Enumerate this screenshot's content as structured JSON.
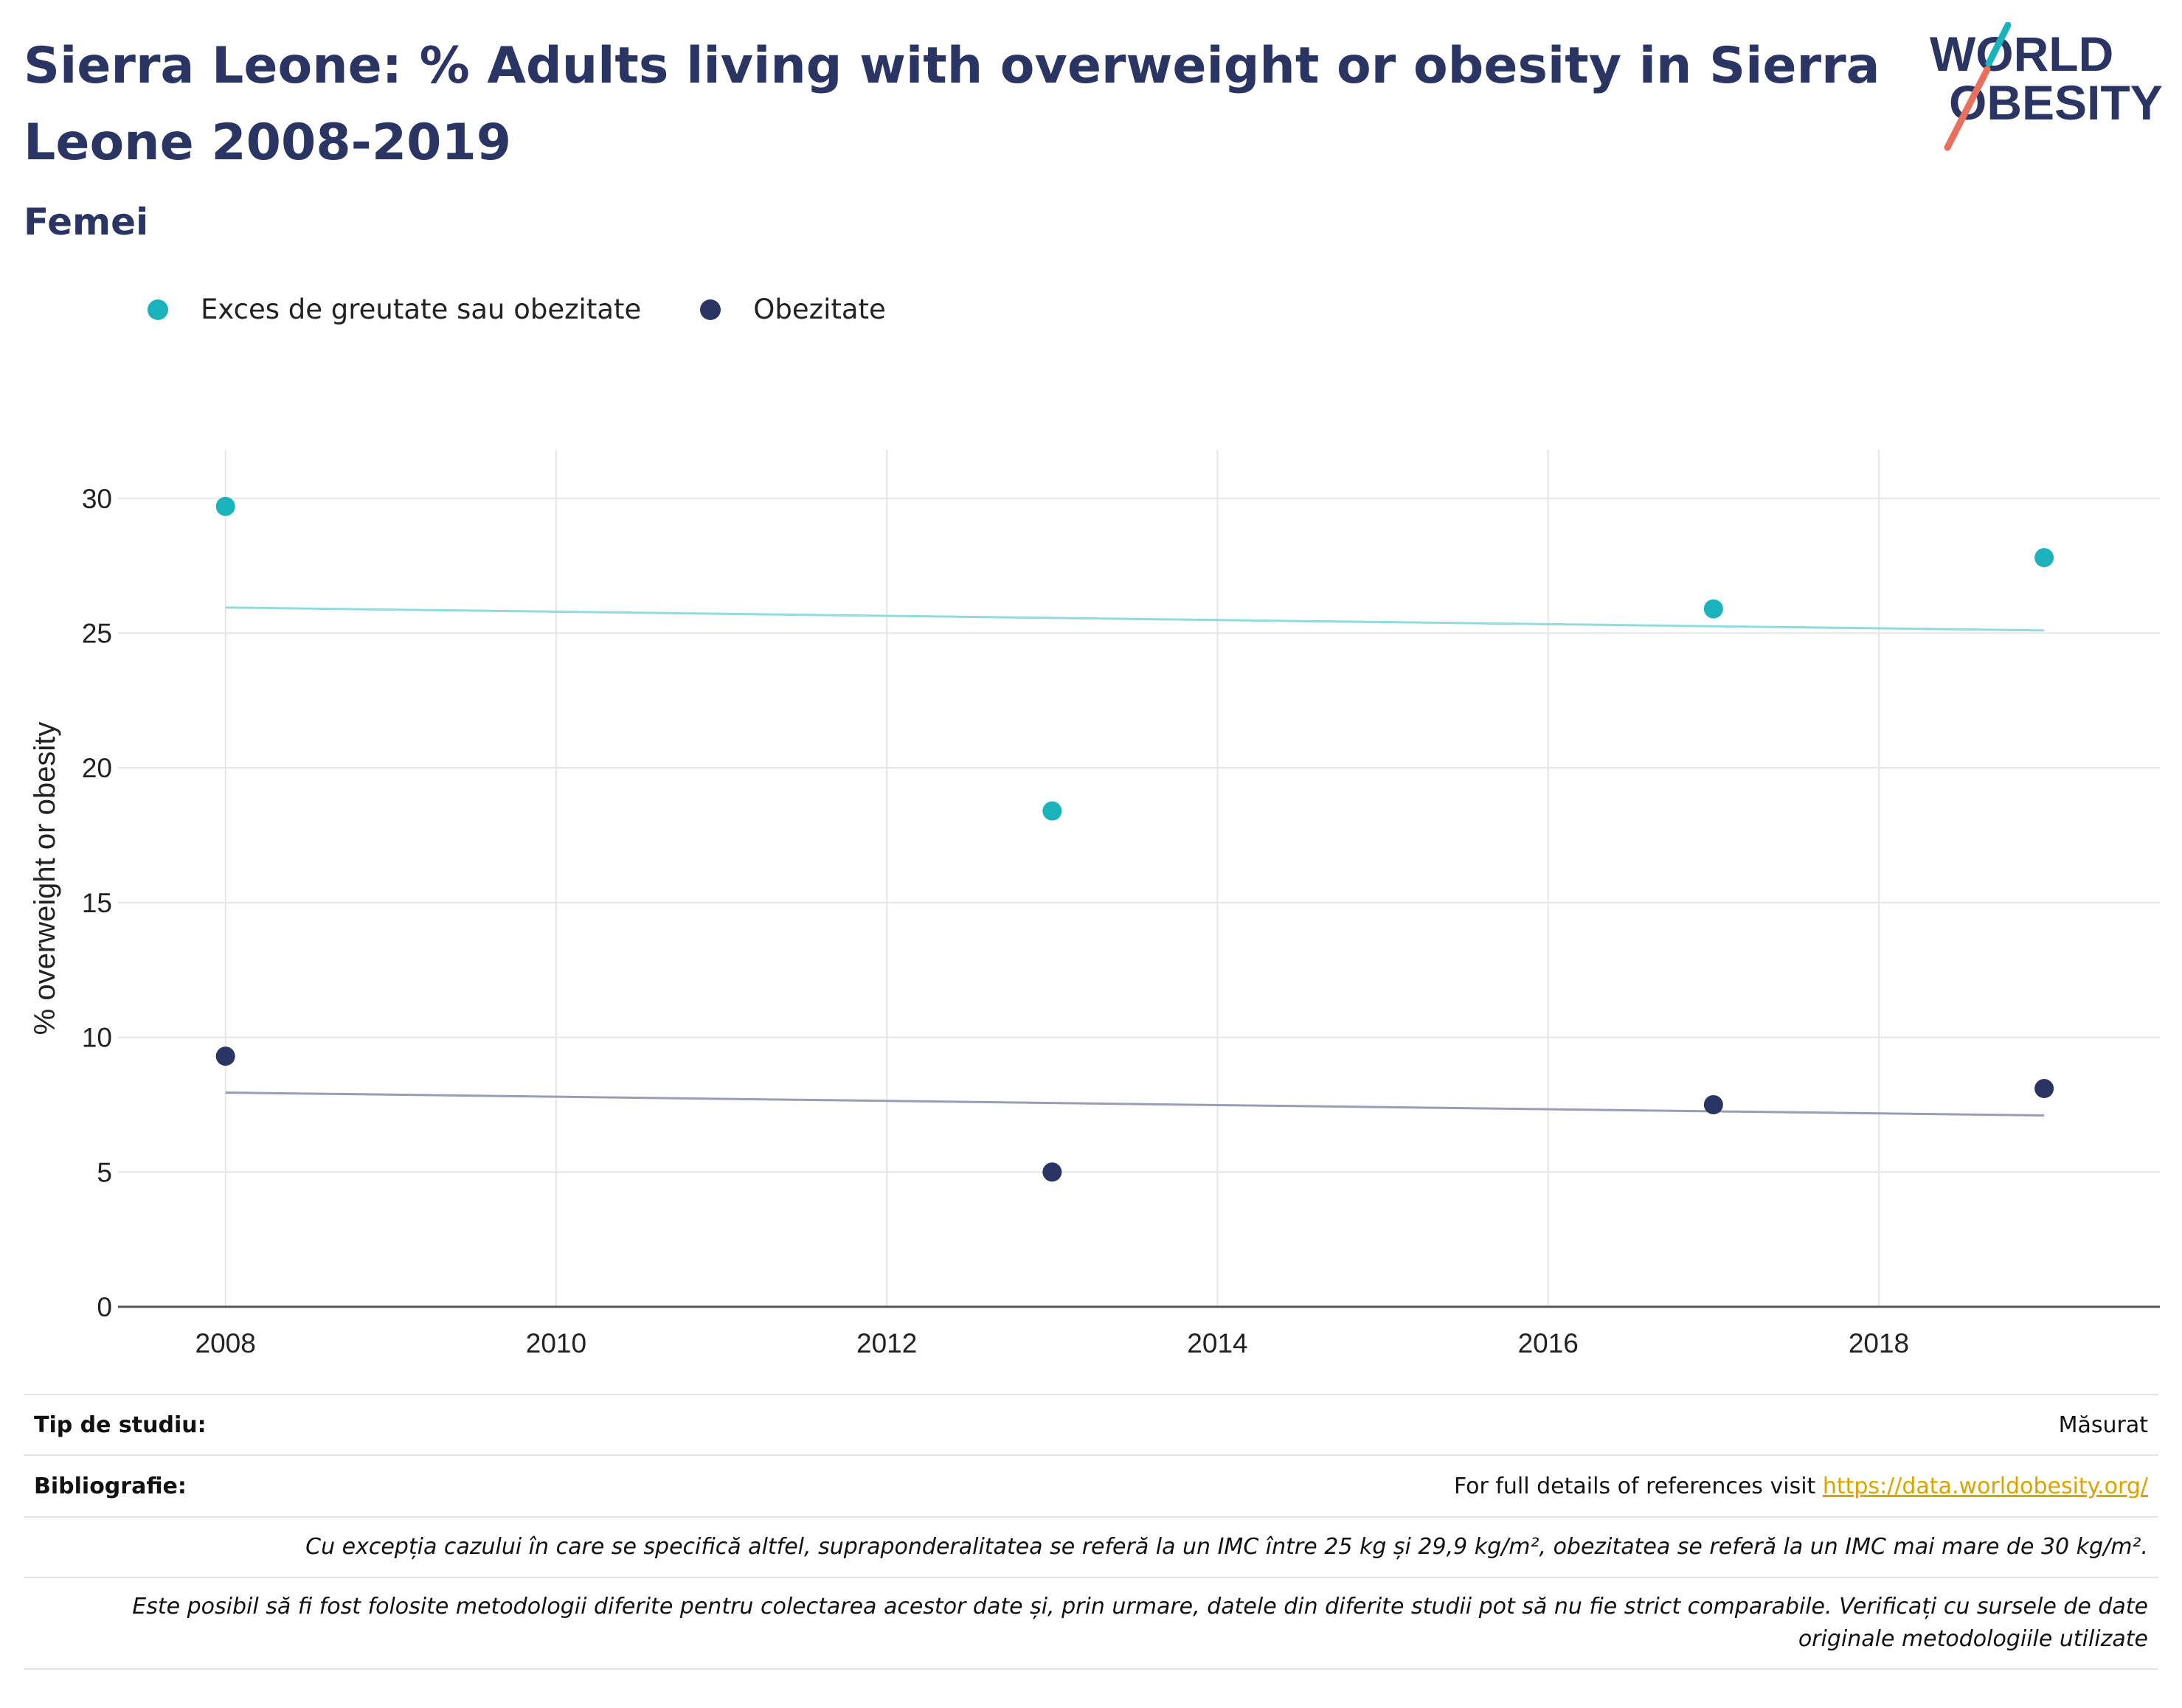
{
  "header": {
    "title": "Sierra Leone: % Adults living with overweight or obesity in Sierra Leone 2008-2019",
    "subtitle": "Femei",
    "logo_line1": "WORLD",
    "logo_line2": "OBESITY"
  },
  "colors": {
    "overweight": "#1ab3bb",
    "obesity": "#2a3563",
    "overweight_trend": "#8fdcdc",
    "obesity_trend": "#9a9db3",
    "title": "#2a3563",
    "link": "#d9a400"
  },
  "legend": [
    {
      "label": "Exces de greutate sau obezitate",
      "color": "#1ab3bb"
    },
    {
      "label": "Obezitate",
      "color": "#2a3563"
    }
  ],
  "chart_data": {
    "type": "scatter",
    "ylabel": "% overweight or obesity",
    "xlabel": "",
    "xlim": [
      2007.35,
      2019.7
    ],
    "ylim": [
      0,
      31.8
    ],
    "xticks": [
      2008,
      2010,
      2012,
      2014,
      2016,
      2018
    ],
    "yticks": [
      0,
      5,
      10,
      15,
      20,
      25,
      30
    ],
    "grid": true,
    "legend_position": "top-left",
    "series": [
      {
        "name": "Exces de greutate sau obezitate",
        "x": [
          2008,
          2013,
          2017,
          2019
        ],
        "y": [
          29.7,
          18.4,
          25.9,
          27.8
        ],
        "trend": {
          "x": [
            2008,
            2019
          ],
          "y": [
            25.95,
            25.1
          ]
        }
      },
      {
        "name": "Obezitate",
        "x": [
          2008,
          2013,
          2017,
          2019
        ],
        "y": [
          9.3,
          5.0,
          7.5,
          8.1
        ],
        "trend": {
          "x": [
            2008,
            2019
          ],
          "y": [
            7.95,
            7.1
          ]
        }
      }
    ]
  },
  "footer": {
    "study_type_label": "Tip de studiu:",
    "study_type_value": "Măsurat",
    "bibliography_label": "Bibliografie:",
    "bibliography_text": "For full details of references visit ",
    "bibliography_link": "https://data.worldobesity.org/",
    "note1": "Cu excepția cazului în care se specifică altfel, supraponderalitatea se referă la un IMC între 25 kg și 29,9 kg/m², obezitatea se referă la un IMC mai mare de 30 kg/m².",
    "note2": "Este posibil să fi fost folosite metodologii diferite pentru colectarea acestor date și, prin urmare, datele din diferite studii pot să nu fie strict comparabile. Verificați cu sursele de date originale metodologiile utilizate"
  }
}
